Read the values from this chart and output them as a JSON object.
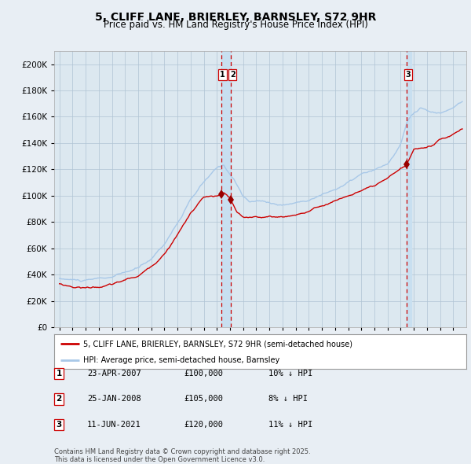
{
  "title": "5, CLIFF LANE, BRIERLEY, BARNSLEY, S72 9HR",
  "subtitle": "Price paid vs. HM Land Registry's House Price Index (HPI)",
  "legend_line1": "5, CLIFF LANE, BRIERLEY, BARNSLEY, S72 9HR (semi-detached house)",
  "legend_line2": "HPI: Average price, semi-detached house, Barnsley",
  "footer": "Contains HM Land Registry data © Crown copyright and database right 2025.\nThis data is licensed under the Open Government Licence v3.0.",
  "transactions": [
    {
      "id": 1,
      "date_str": "23-APR-2007",
      "date_num": 2007.31,
      "price": 100000,
      "pct": "10%",
      "direction": "↓"
    },
    {
      "id": 2,
      "date_str": "25-JAN-2008",
      "date_num": 2008.07,
      "price": 105000,
      "pct": "8%",
      "direction": "↓"
    },
    {
      "id": 3,
      "date_str": "11-JUN-2021",
      "date_num": 2021.44,
      "price": 120000,
      "pct": "11%",
      "direction": "↓"
    }
  ],
  "hpi_color": "#a8c8e8",
  "price_color": "#cc0000",
  "marker_color": "#990000",
  "background_color": "#e8eef4",
  "plot_bg": "#dce8f0",
  "grid_color": "#b0c4d4",
  "vline_color": "#cc0000",
  "vspan_color": "#c8dff0",
  "ylim": [
    0,
    210000
  ],
  "ytick_step": 20000,
  "title_fontsize": 10,
  "subtitle_fontsize": 8.5
}
